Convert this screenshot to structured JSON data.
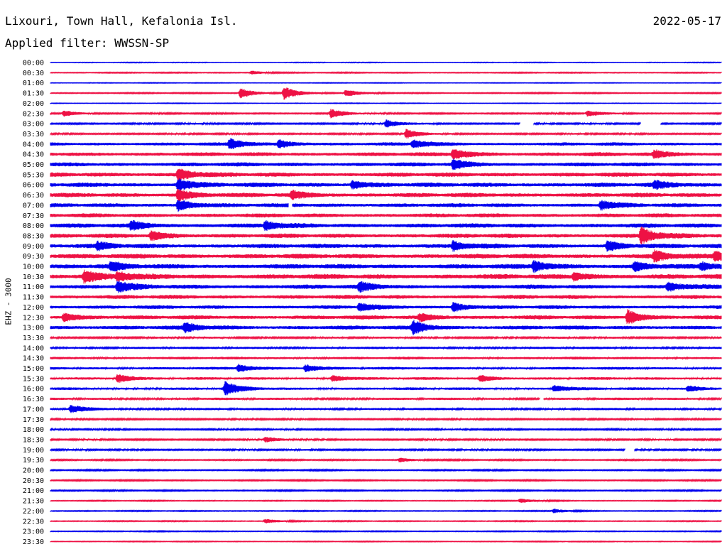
{
  "header": {
    "station": "Lixouri, Town Hall, Kefalonia Isl.",
    "date": "2022-05-17",
    "filter": "Applied filter: WWSSN-SP"
  },
  "chart_data": {
    "type": "line",
    "subtype": "helicorder",
    "ylabel": "EHZ - 3000",
    "row_labels": [
      "00:00",
      "00:30",
      "01:00",
      "01:30",
      "02:00",
      "02:30",
      "03:00",
      "03:30",
      "04:00",
      "04:30",
      "05:00",
      "05:30",
      "06:00",
      "06:30",
      "07:00",
      "07:30",
      "08:00",
      "08:30",
      "09:00",
      "09:30",
      "10:00",
      "10:30",
      "11:00",
      "11:30",
      "12:00",
      "12:30",
      "13:00",
      "13:30",
      "14:00",
      "14:30",
      "15:00",
      "15:30",
      "16:00",
      "16:30",
      "17:00",
      "17:30",
      "18:00",
      "18:30",
      "19:00",
      "19:30",
      "20:00",
      "20:30",
      "21:00",
      "21:30",
      "22:00",
      "22:30",
      "23:00",
      "23:30"
    ],
    "colors": [
      "#0000ee",
      "#ee1144"
    ],
    "noise_level": [
      0.4,
      0.6,
      0.4,
      0.7,
      0.4,
      0.9,
      1.0,
      1.0,
      2.0,
      2.4,
      2.4,
      2.6,
      2.6,
      2.6,
      2.4,
      2.4,
      2.6,
      2.6,
      2.6,
      2.8,
      2.8,
      3.0,
      2.6,
      2.4,
      2.2,
      2.4,
      2.4,
      1.2,
      1.4,
      1.6,
      1.6,
      1.6,
      1.6,
      1.4,
      1.4,
      1.0,
      1.0,
      1.0,
      1.0,
      0.8,
      0.8,
      0.8,
      0.8,
      0.6,
      0.6,
      0.6,
      0.6,
      0.5
    ],
    "events": [
      {
        "row": 1,
        "t": 0.3,
        "a": 2.5
      },
      {
        "row": 3,
        "t": 0.283,
        "a": 7
      },
      {
        "row": 3,
        "t": 0.348,
        "a": 9
      },
      {
        "row": 3,
        "t": 0.44,
        "a": 5
      },
      {
        "row": 5,
        "t": 0.02,
        "a": 4
      },
      {
        "row": 5,
        "t": 0.418,
        "a": 6
      },
      {
        "row": 5,
        "t": 0.8,
        "a": 4
      },
      {
        "row": 6,
        "t": 0.5,
        "a": 5
      },
      {
        "row": 7,
        "t": 0.53,
        "a": 6
      },
      {
        "row": 8,
        "t": 0.267,
        "a": 7
      },
      {
        "row": 8,
        "t": 0.34,
        "a": 5
      },
      {
        "row": 8,
        "t": 0.54,
        "a": 6
      },
      {
        "row": 9,
        "t": 0.6,
        "a": 7
      },
      {
        "row": 9,
        "t": 0.9,
        "a": 5
      },
      {
        "row": 10,
        "t": 0.6,
        "a": 6
      },
      {
        "row": 11,
        "t": 0.19,
        "a": 9
      },
      {
        "row": 12,
        "t": 0.19,
        "a": 8
      },
      {
        "row": 12,
        "t": 0.45,
        "a": 5
      },
      {
        "row": 12,
        "t": 0.9,
        "a": 5
      },
      {
        "row": 13,
        "t": 0.19,
        "a": 8
      },
      {
        "row": 13,
        "t": 0.36,
        "a": 5
      },
      {
        "row": 14,
        "t": 0.19,
        "a": 8
      },
      {
        "row": 14,
        "t": 0.82,
        "a": 6
      },
      {
        "row": 16,
        "t": 0.12,
        "a": 6
      },
      {
        "row": 16,
        "t": 0.32,
        "a": 6
      },
      {
        "row": 17,
        "t": 0.15,
        "a": 6
      },
      {
        "row": 17,
        "t": 0.88,
        "a": 12
      },
      {
        "row": 18,
        "t": 0.07,
        "a": 5
      },
      {
        "row": 18,
        "t": 0.6,
        "a": 6
      },
      {
        "row": 18,
        "t": 0.83,
        "a": 7
      },
      {
        "row": 19,
        "t": 0.9,
        "a": 7
      },
      {
        "row": 19,
        "t": 0.99,
        "a": 6
      },
      {
        "row": 20,
        "t": 0.09,
        "a": 6
      },
      {
        "row": 20,
        "t": 0.72,
        "a": 7
      },
      {
        "row": 20,
        "t": 0.87,
        "a": 6
      },
      {
        "row": 20,
        "t": 0.97,
        "a": 5
      },
      {
        "row": 21,
        "t": 0.05,
        "a": 8
      },
      {
        "row": 21,
        "t": 0.1,
        "a": 6
      },
      {
        "row": 21,
        "t": 0.78,
        "a": 5
      },
      {
        "row": 22,
        "t": 0.1,
        "a": 7
      },
      {
        "row": 22,
        "t": 0.46,
        "a": 6
      },
      {
        "row": 22,
        "t": 0.92,
        "a": 6
      },
      {
        "row": 24,
        "t": 0.46,
        "a": 5
      },
      {
        "row": 24,
        "t": 0.6,
        "a": 6
      },
      {
        "row": 25,
        "t": 0.02,
        "a": 6
      },
      {
        "row": 25,
        "t": 0.55,
        "a": 5
      },
      {
        "row": 25,
        "t": 0.86,
        "a": 10
      },
      {
        "row": 26,
        "t": 0.2,
        "a": 6
      },
      {
        "row": 26,
        "t": 0.54,
        "a": 9
      },
      {
        "row": 30,
        "t": 0.28,
        "a": 5
      },
      {
        "row": 30,
        "t": 0.38,
        "a": 5
      },
      {
        "row": 31,
        "t": 0.1,
        "a": 6
      },
      {
        "row": 31,
        "t": 0.42,
        "a": 4
      },
      {
        "row": 31,
        "t": 0.64,
        "a": 4
      },
      {
        "row": 32,
        "t": 0.26,
        "a": 9
      },
      {
        "row": 32,
        "t": 0.75,
        "a": 4
      },
      {
        "row": 32,
        "t": 0.95,
        "a": 4
      },
      {
        "row": 34,
        "t": 0.03,
        "a": 5
      },
      {
        "row": 37,
        "t": 0.32,
        "a": 3
      },
      {
        "row": 39,
        "t": 0.52,
        "a": 3
      },
      {
        "row": 43,
        "t": 0.7,
        "a": 3
      },
      {
        "row": 44,
        "t": 0.75,
        "a": 3
      },
      {
        "row": 45,
        "t": 0.32,
        "a": 3
      }
    ],
    "gaps": [
      {
        "row": 6,
        "t0": 0.7,
        "t1": 0.72
      },
      {
        "row": 6,
        "t0": 0.88,
        "t1": 0.91
      },
      {
        "row": 14,
        "t0": 0.355,
        "t1": 0.36
      },
      {
        "row": 33,
        "t0": 0.73,
        "t1": 0.735
      },
      {
        "row": 38,
        "t0": 0.857,
        "t1": 0.87
      }
    ]
  }
}
